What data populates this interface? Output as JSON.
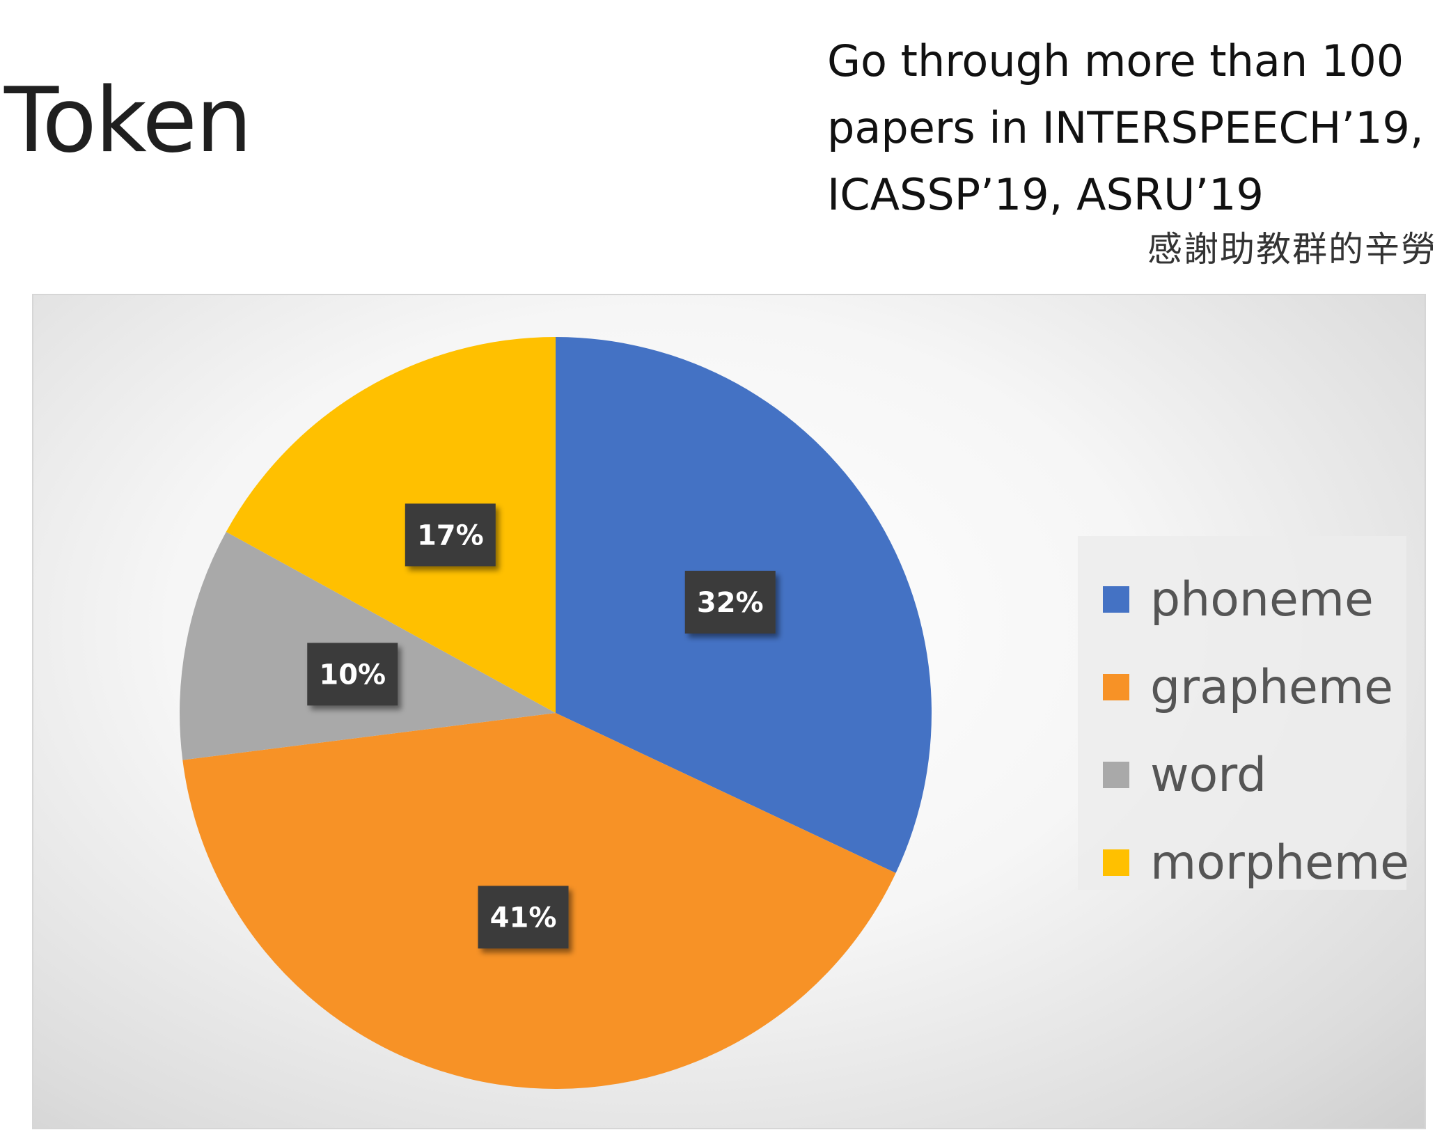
{
  "slide": {
    "title": "Token",
    "note_lines": [
      "Go through more than 100",
      "papers in INTERSPEECH’19,",
      "ICASSP’19, ASRU’19"
    ],
    "thanks": "感謝助教群的辛勞"
  },
  "chart_data": {
    "type": "pie",
    "title": "",
    "legend_position": "right",
    "start_angle_deg": 0,
    "direction": "clockwise",
    "slices": [
      {
        "name": "phoneme",
        "value": 32,
        "label": "32%",
        "color": "#4472C4"
      },
      {
        "name": "grapheme",
        "value": 41,
        "label": "41%",
        "color": "#F79226"
      },
      {
        "name": "word",
        "value": 10,
        "label": "10%",
        "color": "#A9A9A9"
      },
      {
        "name": "morpheme",
        "value": 17,
        "label": "17%",
        "color": "#FFC000"
      }
    ]
  }
}
